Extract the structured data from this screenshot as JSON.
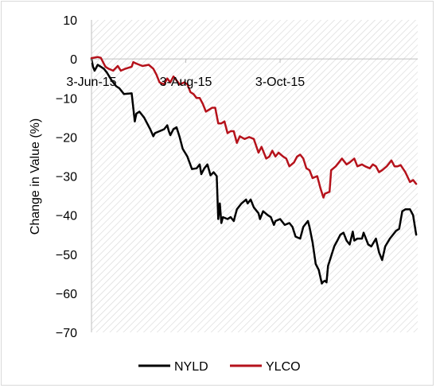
{
  "chart_data": {
    "type": "line",
    "title": "",
    "xlabel": "",
    "ylabel": "Change in Value (%)",
    "ylim": [
      -70,
      10
    ],
    "yticks": [
      10,
      0,
      -10,
      -20,
      -30,
      -40,
      -50,
      -60,
      -70
    ],
    "ytick_labels": [
      "10",
      "0",
      "−10",
      "−20",
      "−30",
      "−40",
      "−50",
      "−60",
      "−70"
    ],
    "xlim": [
      "2015-06-03",
      "2015-12-31"
    ],
    "xticks": [
      {
        "date": "2015-06-03",
        "label": "3-Jun-15"
      },
      {
        "date": "2015-08-03",
        "label": "3-Aug-15"
      },
      {
        "date": "2015-10-03",
        "label": "3-Oct-15"
      }
    ],
    "grid": false,
    "plot_background": "diagonal hatch",
    "legend_position": "bottom",
    "series": [
      {
        "name": "NYLD",
        "color": "#000000",
        "points": [
          [
            "2015-06-03",
            0
          ],
          [
            "2015-06-04",
            -2
          ],
          [
            "2015-06-05",
            -3
          ],
          [
            "2015-06-07",
            -1.5
          ],
          [
            "2015-06-09",
            -2
          ],
          [
            "2015-06-11",
            -2.5
          ],
          [
            "2015-06-13",
            -3.5
          ],
          [
            "2015-06-16",
            -5.5
          ],
          [
            "2015-06-19",
            -7
          ],
          [
            "2015-06-21",
            -7.5
          ],
          [
            "2015-06-24",
            -9
          ],
          [
            "2015-06-29",
            -8.8
          ],
          [
            "2015-07-01",
            -16
          ],
          [
            "2015-07-02",
            -14
          ],
          [
            "2015-07-04",
            -13.5
          ],
          [
            "2015-07-07",
            -15
          ],
          [
            "2015-07-11",
            -18
          ],
          [
            "2015-07-13",
            -19.8
          ],
          [
            "2015-07-14",
            -19
          ],
          [
            "2015-07-20",
            -18
          ],
          [
            "2015-07-22",
            -17
          ],
          [
            "2015-07-23",
            -18.5
          ],
          [
            "2015-07-24",
            -19.5
          ],
          [
            "2015-07-26",
            -18
          ],
          [
            "2015-07-28",
            -17.5
          ],
          [
            "2015-07-30",
            -20
          ],
          [
            "2015-08-01",
            -23
          ],
          [
            "2015-08-04",
            -25
          ],
          [
            "2015-08-07",
            -28.2
          ],
          [
            "2015-08-10",
            -28
          ],
          [
            "2015-08-12",
            -27
          ],
          [
            "2015-08-13",
            -29.5
          ],
          [
            "2015-08-15",
            -28
          ],
          [
            "2015-08-17",
            -27
          ],
          [
            "2015-08-19",
            -29.8
          ],
          [
            "2015-08-21",
            -29
          ],
          [
            "2015-08-23",
            -30
          ],
          [
            "2015-08-24",
            -41
          ],
          [
            "2015-08-25",
            -37
          ],
          [
            "2015-08-26",
            -42
          ],
          [
            "2015-08-27",
            -40.5
          ],
          [
            "2015-08-30",
            -41
          ],
          [
            "2015-09-01",
            -40.5
          ],
          [
            "2015-09-03",
            -41.5
          ],
          [
            "2015-09-05",
            -38.5
          ],
          [
            "2015-09-08",
            -37
          ],
          [
            "2015-09-11",
            -36
          ],
          [
            "2015-09-12",
            -37
          ],
          [
            "2015-09-14",
            -36
          ],
          [
            "2015-09-16",
            -38
          ],
          [
            "2015-09-19",
            -39.5
          ],
          [
            "2015-09-20",
            -41
          ],
          [
            "2015-09-22",
            -39
          ],
          [
            "2015-09-25",
            -40
          ],
          [
            "2015-09-27",
            -40.5
          ],
          [
            "2015-09-29",
            -42.5
          ],
          [
            "2015-09-30",
            -41.5
          ],
          [
            "2015-10-03",
            -41
          ],
          [
            "2015-10-06",
            -42.5
          ],
          [
            "2015-10-09",
            -42
          ],
          [
            "2015-10-11",
            -43
          ],
          [
            "2015-10-13",
            -45.5
          ],
          [
            "2015-10-16",
            -46
          ],
          [
            "2015-10-18",
            -43
          ],
          [
            "2015-10-21",
            -41.5
          ],
          [
            "2015-10-22",
            -43
          ],
          [
            "2015-10-24",
            -47
          ],
          [
            "2015-10-26",
            -52.5
          ],
          [
            "2015-10-28",
            -54
          ],
          [
            "2015-10-30",
            -57.5
          ],
          [
            "2015-10-31",
            -57
          ],
          [
            "2015-11-01",
            -56.8
          ],
          [
            "2015-11-02",
            -57.2
          ],
          [
            "2015-11-03",
            -53
          ],
          [
            "2015-11-05",
            -50.5
          ],
          [
            "2015-11-07",
            -48
          ],
          [
            "2015-11-09",
            -46.5
          ],
          [
            "2015-11-11",
            -45
          ],
          [
            "2015-11-13",
            -44.5
          ],
          [
            "2015-11-15",
            -46.5
          ],
          [
            "2015-11-17",
            -47.5
          ],
          [
            "2015-11-19",
            -44.2
          ],
          [
            "2015-11-20",
            -46.5
          ],
          [
            "2015-11-22",
            -46
          ],
          [
            "2015-11-25",
            -46
          ],
          [
            "2015-11-26",
            -44.5
          ],
          [
            "2015-11-29",
            -47.5
          ],
          [
            "2015-12-01",
            -48
          ],
          [
            "2015-12-04",
            -46
          ],
          [
            "2015-12-06",
            -49.5
          ],
          [
            "2015-12-08",
            -51.5
          ],
          [
            "2015-12-10",
            -48
          ],
          [
            "2015-12-13",
            -46
          ],
          [
            "2015-12-17",
            -44
          ],
          [
            "2015-12-19",
            -43.5
          ],
          [
            "2015-12-21",
            -39
          ],
          [
            "2015-12-23",
            -38.5
          ],
          [
            "2015-12-26",
            -38.5
          ],
          [
            "2015-12-28",
            -40
          ],
          [
            "2015-12-30",
            -45
          ]
        ]
      },
      {
        "name": "YLCO",
        "color": "#b5121b",
        "points": [
          [
            "2015-06-03",
            0.2
          ],
          [
            "2015-06-07",
            0.5
          ],
          [
            "2015-06-09",
            0.3
          ],
          [
            "2015-06-12",
            -2
          ],
          [
            "2015-06-14",
            -2.5
          ],
          [
            "2015-06-17",
            -3
          ],
          [
            "2015-06-20",
            -1.8
          ],
          [
            "2015-06-22",
            -3
          ],
          [
            "2015-06-25",
            -2.5
          ],
          [
            "2015-06-29",
            -2
          ],
          [
            "2015-06-30",
            -0.8
          ],
          [
            "2015-07-02",
            -1.2
          ],
          [
            "2015-07-06",
            -1.8
          ],
          [
            "2015-07-10",
            -1.5
          ],
          [
            "2015-07-13",
            -2.5
          ],
          [
            "2015-07-15",
            -4
          ],
          [
            "2015-07-17",
            -6
          ],
          [
            "2015-07-20",
            -6.5
          ],
          [
            "2015-07-22",
            -5
          ],
          [
            "2015-07-24",
            -6
          ],
          [
            "2015-07-26",
            -4.5
          ],
          [
            "2015-07-28",
            -5.5
          ],
          [
            "2015-07-30",
            -6.5
          ],
          [
            "2015-08-02",
            -6
          ],
          [
            "2015-08-04",
            -6.5
          ],
          [
            "2015-08-06",
            -8.5
          ],
          [
            "2015-08-08",
            -9
          ],
          [
            "2015-08-10",
            -10
          ],
          [
            "2015-08-12",
            -10
          ],
          [
            "2015-08-14",
            -11.5
          ],
          [
            "2015-08-16",
            -13.5
          ],
          [
            "2015-08-18",
            -13
          ],
          [
            "2015-08-20",
            -12.5
          ],
          [
            "2015-08-22",
            -12.5
          ],
          [
            "2015-08-24",
            -16.5
          ],
          [
            "2015-08-26",
            -16.5
          ],
          [
            "2015-08-28",
            -16
          ],
          [
            "2015-08-30",
            -19
          ],
          [
            "2015-09-01",
            -18.5
          ],
          [
            "2015-09-03",
            -18.5
          ],
          [
            "2015-09-05",
            -21.5
          ],
          [
            "2015-09-07",
            -19.8
          ],
          [
            "2015-09-10",
            -20.5
          ],
          [
            "2015-09-13",
            -20
          ],
          [
            "2015-09-16",
            -20.5
          ],
          [
            "2015-09-19",
            -24
          ],
          [
            "2015-09-21",
            -22.5
          ],
          [
            "2015-09-24",
            -25.5
          ],
          [
            "2015-09-26",
            -25
          ],
          [
            "2015-09-28",
            -23.5
          ],
          [
            "2015-09-30",
            -25
          ],
          [
            "2015-10-02",
            -24
          ],
          [
            "2015-10-05",
            -25
          ],
          [
            "2015-10-07",
            -25.5
          ],
          [
            "2015-10-09",
            -27.5
          ],
          [
            "2015-10-12",
            -26.5
          ],
          [
            "2015-10-14",
            -25
          ],
          [
            "2015-10-16",
            -24.5
          ],
          [
            "2015-10-18",
            -25.5
          ],
          [
            "2015-10-20",
            -28
          ],
          [
            "2015-10-22",
            -28.5
          ],
          [
            "2015-10-24",
            -30.5
          ],
          [
            "2015-10-27",
            -30
          ],
          [
            "2015-10-29",
            -33
          ],
          [
            "2015-10-31",
            -35.5
          ],
          [
            "2015-11-01",
            -34.5
          ],
          [
            "2015-11-04",
            -34
          ],
          [
            "2015-11-05",
            -28.5
          ],
          [
            "2015-11-08",
            -27.5
          ],
          [
            "2015-11-10",
            -26.5
          ],
          [
            "2015-11-12",
            -25.5
          ],
          [
            "2015-11-15",
            -27
          ],
          [
            "2015-11-17",
            -26.5
          ],
          [
            "2015-11-20",
            -25.5
          ],
          [
            "2015-11-22",
            -27.5
          ],
          [
            "2015-11-25",
            -27
          ],
          [
            "2015-11-27",
            -27.5
          ],
          [
            "2015-11-30",
            -28
          ],
          [
            "2015-12-02",
            -27
          ],
          [
            "2015-12-04",
            -27.5
          ],
          [
            "2015-12-06",
            -29
          ],
          [
            "2015-12-08",
            -28.5
          ],
          [
            "2015-12-11",
            -27.5
          ],
          [
            "2015-12-14",
            -26
          ],
          [
            "2015-12-16",
            -27.5
          ],
          [
            "2015-12-18",
            -27.5
          ],
          [
            "2015-12-20",
            -27.2
          ],
          [
            "2015-12-23",
            -29
          ],
          [
            "2015-12-26",
            -31.5
          ],
          [
            "2015-12-28",
            -31
          ],
          [
            "2015-12-30",
            -32
          ]
        ]
      }
    ]
  }
}
